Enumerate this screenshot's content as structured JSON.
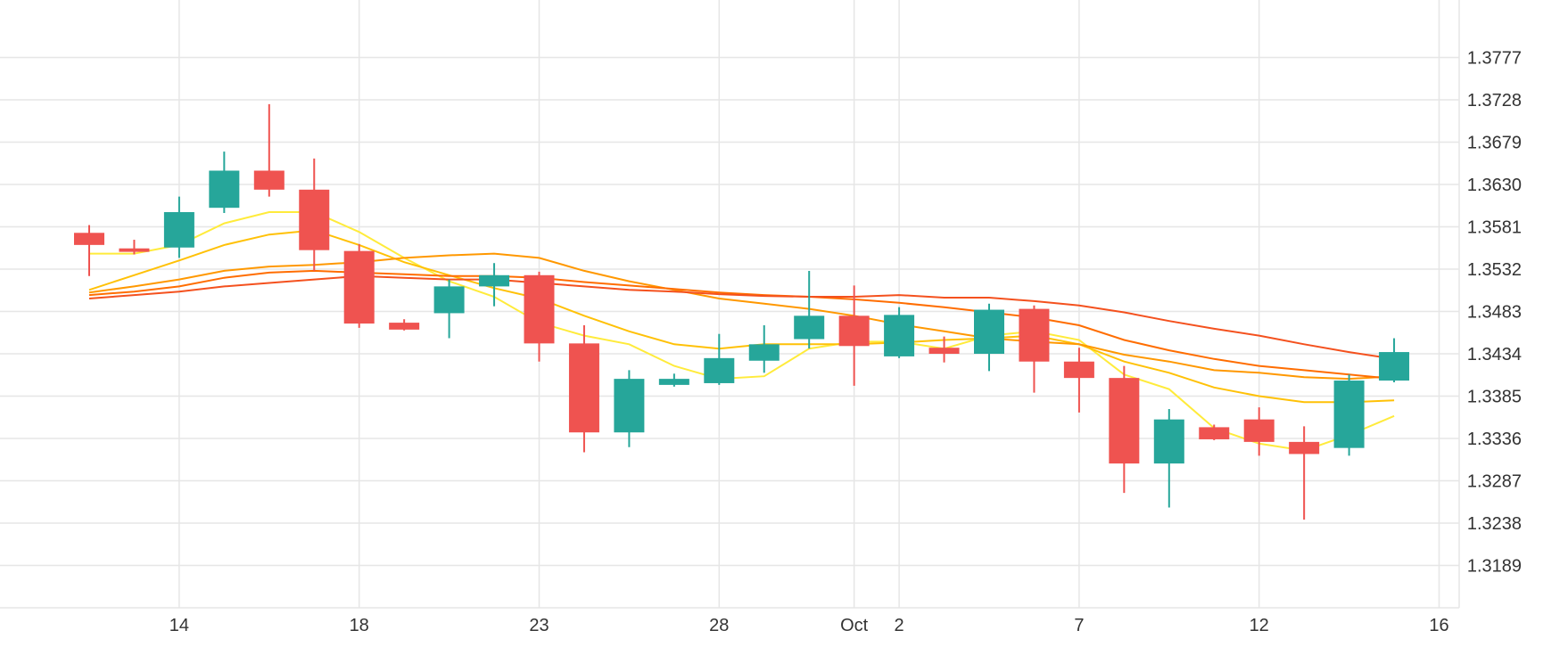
{
  "chart_data": {
    "type": "candlestick",
    "title": "",
    "xlabel": "",
    "ylabel": "",
    "ylim": [
      1.314,
      1.3826
    ],
    "grid": true,
    "x_ticks": [
      {
        "label": "14",
        "at": 2
      },
      {
        "label": "18",
        "at": 6
      },
      {
        "label": "23",
        "at": 10
      },
      {
        "label": "28",
        "at": 14
      },
      {
        "label": "Oct",
        "at": 17
      },
      {
        "label": "2",
        "at": 18
      },
      {
        "label": "7",
        "at": 22
      },
      {
        "label": "12",
        "at": 26
      },
      {
        "label": "16",
        "at": 30
      }
    ],
    "y_ticks": [
      {
        "label": "1.3777",
        "value": 1.3777
      },
      {
        "label": "1.3728",
        "value": 1.3728
      },
      {
        "label": "1.3679",
        "value": 1.3679
      },
      {
        "label": "1.3630",
        "value": 1.363
      },
      {
        "label": "1.3581",
        "value": 1.3581
      },
      {
        "label": "1.3532",
        "value": 1.3532
      },
      {
        "label": "1.3483",
        "value": 1.3483
      },
      {
        "label": "1.3434",
        "value": 1.3434
      },
      {
        "label": "1.3385",
        "value": 1.3385
      },
      {
        "label": "1.3336",
        "value": 1.3336
      },
      {
        "label": "1.3287",
        "value": 1.3287
      },
      {
        "label": "1.3238",
        "value": 1.3238
      },
      {
        "label": "1.3189",
        "value": 1.3189
      }
    ],
    "colors": {
      "up": "#26a69a",
      "down": "#ef5350",
      "grid": "#e6e6e6",
      "axis_text": "#333333"
    },
    "candles": [
      {
        "o": 1.3574,
        "h": 1.3583,
        "l": 1.3524,
        "c": 1.356
      },
      {
        "o": 1.3556,
        "h": 1.3566,
        "l": 1.3549,
        "c": 1.3552
      },
      {
        "o": 1.3557,
        "h": 1.3616,
        "l": 1.3545,
        "c": 1.3598
      },
      {
        "o": 1.3603,
        "h": 1.3668,
        "l": 1.3597,
        "c": 1.3646
      },
      {
        "o": 1.3646,
        "h": 1.3723,
        "l": 1.3616,
        "c": 1.3624
      },
      {
        "o": 1.3624,
        "h": 1.366,
        "l": 1.353,
        "c": 1.3554
      },
      {
        "o": 1.3553,
        "h": 1.3561,
        "l": 1.3464,
        "c": 1.3469
      },
      {
        "o": 1.347,
        "h": 1.3474,
        "l": 1.3461,
        "c": 1.3462
      },
      {
        "o": 1.3481,
        "h": 1.352,
        "l": 1.3452,
        "c": 1.3512
      },
      {
        "o": 1.3512,
        "h": 1.3539,
        "l": 1.3489,
        "c": 1.3525
      },
      {
        "o": 1.3525,
        "h": 1.3529,
        "l": 1.3425,
        "c": 1.3446
      },
      {
        "o": 1.3446,
        "h": 1.3467,
        "l": 1.332,
        "c": 1.3343
      },
      {
        "o": 1.3343,
        "h": 1.3415,
        "l": 1.3326,
        "c": 1.3405
      },
      {
        "o": 1.3398,
        "h": 1.3411,
        "l": 1.3396,
        "c": 1.3405
      },
      {
        "o": 1.34,
        "h": 1.3457,
        "l": 1.3398,
        "c": 1.3429
      },
      {
        "o": 1.3426,
        "h": 1.3467,
        "l": 1.3412,
        "c": 1.3445
      },
      {
        "o": 1.3451,
        "h": 1.353,
        "l": 1.344,
        "c": 1.3478
      },
      {
        "o": 1.3478,
        "h": 1.3513,
        "l": 1.3397,
        "c": 1.3443
      },
      {
        "o": 1.3431,
        "h": 1.3488,
        "l": 1.3429,
        "c": 1.3479
      },
      {
        "o": 1.3441,
        "h": 1.3454,
        "l": 1.3424,
        "c": 1.3434
      },
      {
        "o": 1.3434,
        "h": 1.3492,
        "l": 1.3414,
        "c": 1.3485
      },
      {
        "o": 1.3486,
        "h": 1.349,
        "l": 1.3389,
        "c": 1.3425
      },
      {
        "o": 1.3425,
        "h": 1.3441,
        "l": 1.3366,
        "c": 1.3406
      },
      {
        "o": 1.3406,
        "h": 1.342,
        "l": 1.3273,
        "c": 1.3307
      },
      {
        "o": 1.3307,
        "h": 1.337,
        "l": 1.3256,
        "c": 1.3358
      },
      {
        "o": 1.3349,
        "h": 1.3352,
        "l": 1.3334,
        "c": 1.3335
      },
      {
        "o": 1.3358,
        "h": 1.3372,
        "l": 1.3316,
        "c": 1.3332
      },
      {
        "o": 1.3332,
        "h": 1.335,
        "l": 1.3242,
        "c": 1.3318
      },
      {
        "o": 1.3325,
        "h": 1.341,
        "l": 1.3316,
        "c": 1.3403
      },
      {
        "o": 1.3403,
        "h": 1.3452,
        "l": 1.3401,
        "c": 1.3436
      }
    ],
    "series": [
      {
        "color": "#ffeb3b",
        "values": [
          1.355,
          1.355,
          1.356,
          1.3585,
          1.3598,
          1.3598,
          1.3575,
          1.3545,
          1.3518,
          1.35,
          1.347,
          1.3455,
          1.3445,
          1.342,
          1.3405,
          1.3408,
          1.344,
          1.3448,
          1.3448,
          1.344,
          1.3455,
          1.346,
          1.345,
          1.341,
          1.3393,
          1.3348,
          1.333,
          1.3322,
          1.334,
          1.3362
        ]
      },
      {
        "color": "#ffc107",
        "values": [
          1.3508,
          1.3525,
          1.3542,
          1.356,
          1.3572,
          1.3577,
          1.356,
          1.354,
          1.3525,
          1.351,
          1.3498,
          1.3478,
          1.346,
          1.3445,
          1.344,
          1.3445,
          1.3445,
          1.3445,
          1.3447,
          1.345,
          1.3452,
          1.3455,
          1.3445,
          1.3425,
          1.3412,
          1.3395,
          1.3385,
          1.3378,
          1.3378,
          1.338
        ]
      },
      {
        "color": "#ff9800",
        "values": [
          1.3505,
          1.3512,
          1.352,
          1.353,
          1.3535,
          1.3537,
          1.354,
          1.3545,
          1.3548,
          1.355,
          1.3545,
          1.353,
          1.3518,
          1.3508,
          1.3498,
          1.3492,
          1.3486,
          1.3478,
          1.3468,
          1.346,
          1.3452,
          1.3448,
          1.3445,
          1.3433,
          1.3425,
          1.3415,
          1.3412,
          1.3407,
          1.3405,
          1.3408
        ]
      },
      {
        "color": "#ff6d00",
        "values": [
          1.3502,
          1.3506,
          1.3512,
          1.3522,
          1.3528,
          1.353,
          1.3528,
          1.3526,
          1.3524,
          1.3524,
          1.3522,
          1.3517,
          1.3513,
          1.3509,
          1.3505,
          1.3502,
          1.35,
          1.3497,
          1.3493,
          1.3488,
          1.3482,
          1.3476,
          1.3467,
          1.345,
          1.3438,
          1.3428,
          1.342,
          1.3415,
          1.341,
          1.3405
        ]
      },
      {
        "color": "#f4511e",
        "values": [
          1.3498,
          1.3502,
          1.3506,
          1.3512,
          1.3516,
          1.352,
          1.3524,
          1.3522,
          1.352,
          1.352,
          1.3516,
          1.3512,
          1.3508,
          1.3506,
          1.3503,
          1.3501,
          1.35,
          1.35,
          1.3502,
          1.3499,
          1.3499,
          1.3495,
          1.349,
          1.3482,
          1.3472,
          1.3463,
          1.3455,
          1.3445,
          1.3436,
          1.3428
        ]
      }
    ]
  }
}
